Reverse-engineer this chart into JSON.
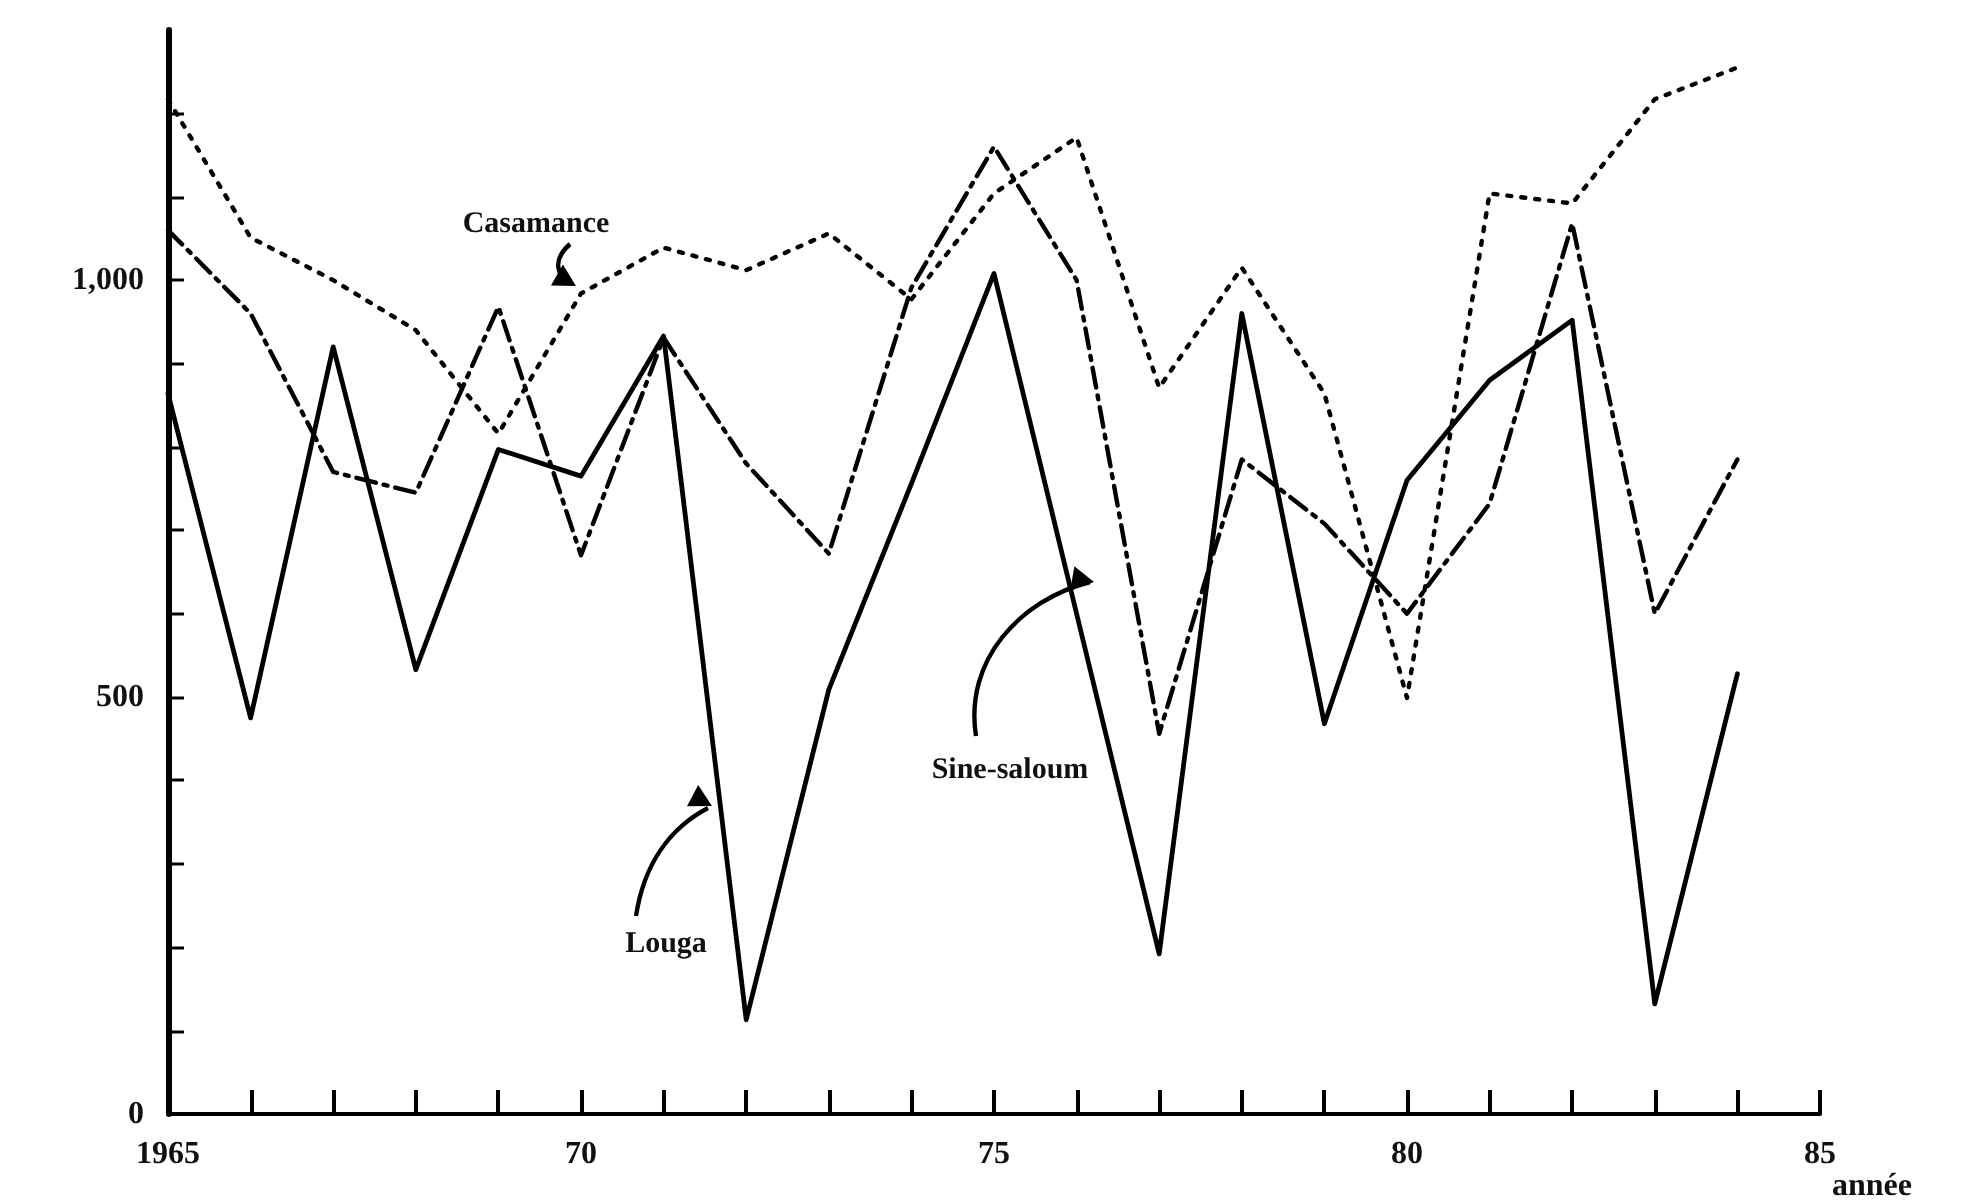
{
  "chart_data": {
    "type": "line",
    "xlabel": "année",
    "x": [
      1965,
      1966,
      1967,
      1968,
      1969,
      1970,
      1971,
      1972,
      1973,
      1974,
      1975,
      1976,
      1977,
      1978,
      1979,
      1980,
      1981,
      1982,
      1983,
      1984
    ],
    "series": [
      {
        "name": "Casamance",
        "color": "#000000",
        "line_style": "dotted",
        "values": [
          1217,
          1051,
          1000,
          940,
          816,
          984,
          1039,
          1012,
          1056,
          977,
          1104,
          1171,
          871,
          1015,
          864,
          499,
          1104,
          1092,
          1217,
          1255
        ]
      },
      {
        "name": "Sine-saloum",
        "color": "#000000",
        "line_style": "dashed",
        "values": [
          1060,
          960,
          770,
          745,
          968,
          670,
          931,
          780,
          672,
          991,
          1160,
          1000,
          456,
          785,
          708,
          600,
          732,
          1068,
          600,
          785
        ]
      },
      {
        "name": "Louga",
        "color": "#000000",
        "line_style": "solid",
        "values": [
          864,
          475,
          920,
          533,
          797,
          765,
          933,
          113,
          509,
          756,
          1008,
          600,
          192,
          960,
          468,
          760,
          880,
          952,
          132,
          528
        ]
      }
    ],
    "xlim": [
      1965,
      1985
    ],
    "xticks": [
      {
        "value": 1965,
        "label": "1965"
      },
      {
        "value": 1966,
        "label": null
      },
      {
        "value": 1967,
        "label": null
      },
      {
        "value": 1968,
        "label": null
      },
      {
        "value": 1969,
        "label": null
      },
      {
        "value": 1970,
        "label": "70"
      },
      {
        "value": 1971,
        "label": null
      },
      {
        "value": 1972,
        "label": null
      },
      {
        "value": 1973,
        "label": null
      },
      {
        "value": 1974,
        "label": null
      },
      {
        "value": 1975,
        "label": "75"
      },
      {
        "value": 1976,
        "label": null
      },
      {
        "value": 1977,
        "label": null
      },
      {
        "value": 1978,
        "label": null
      },
      {
        "value": 1979,
        "label": null
      },
      {
        "value": 1980,
        "label": "80"
      },
      {
        "value": 1981,
        "label": null
      },
      {
        "value": 1982,
        "label": null
      },
      {
        "value": 1983,
        "label": null
      },
      {
        "value": 1984,
        "label": null
      },
      {
        "value": 1985,
        "label": "85"
      }
    ],
    "ylim": [
      0,
      1300
    ],
    "yticks": [
      0,
      {
        "value": 100,
        "label": null
      },
      {
        "value": 200,
        "label": null
      },
      {
        "value": 300,
        "label": null
      },
      {
        "value": 400,
        "label": null
      },
      {
        "value": 500,
        "label": "500"
      },
      {
        "value": 600,
        "label": null
      },
      {
        "value": 700,
        "label": null
      },
      {
        "value": 800,
        "label": null
      },
      {
        "value": 900,
        "label": null
      },
      {
        "value": 1000,
        "label": "1,000"
      },
      {
        "value": 1100,
        "label": null
      },
      {
        "value": 1200,
        "label": null
      }
    ],
    "grid": false,
    "legend": false,
    "marker": "none"
  }
}
